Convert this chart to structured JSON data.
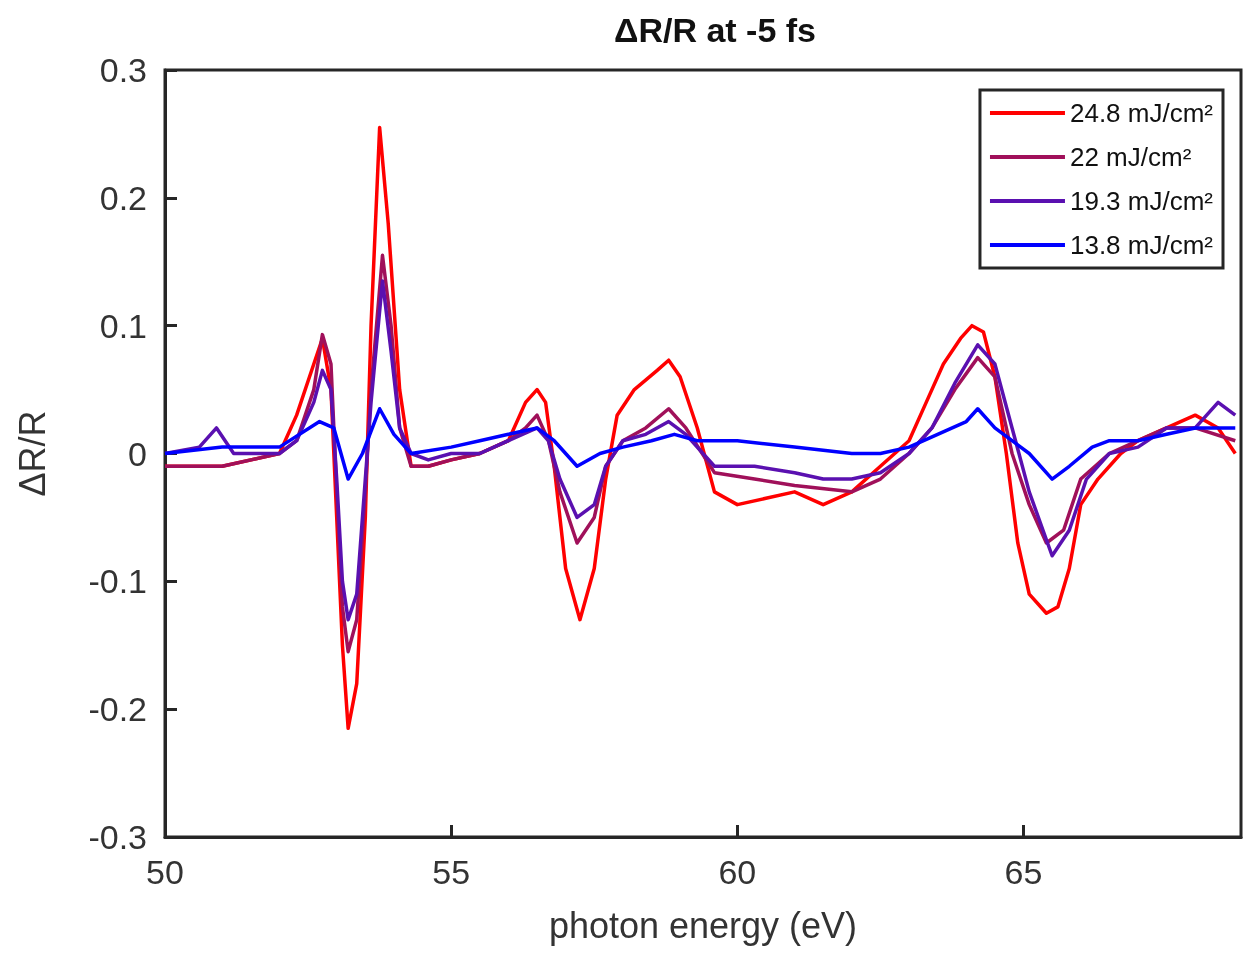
{
  "chart_data": {
    "type": "line",
    "title": "ΔR/R at -5 fs",
    "xlabel": "photon energy (eV)",
    "ylabel": "ΔR/R",
    "xlim": [
      50,
      68.8
    ],
    "xticks": [
      50,
      55,
      60,
      65
    ],
    "ylim": [
      -0.3,
      0.3
    ],
    "yticks": [
      -0.3,
      -0.2,
      -0.1,
      0,
      0.1,
      0.2,
      0.3
    ],
    "grid": false,
    "legend": "top right",
    "marker": "none",
    "line_style": "solid",
    "series": [
      {
        "name": "24.8 mJ/cm²",
        "color": "#ff0000",
        "x": [
          50,
          51,
          52,
          52.3,
          52.6,
          52.75,
          52.9,
          53.0,
          53.1,
          53.2,
          53.35,
          53.5,
          53.6,
          53.75,
          53.9,
          54.1,
          54.3,
          54.6,
          55,
          55.5,
          56.0,
          56.3,
          56.5,
          56.65,
          56.8,
          57.0,
          57.25,
          57.5,
          57.7,
          57.9,
          58.2,
          58.6,
          58.8,
          59.0,
          59.3,
          59.6,
          60.0,
          60.5,
          61.0,
          61.5,
          62.0,
          62.5,
          63.0,
          63.3,
          63.6,
          63.9,
          64.1,
          64.3,
          64.5,
          64.7,
          64.9,
          65.1,
          65.4,
          65.6,
          65.8,
          66.0,
          66.3,
          66.7,
          67.0,
          67.5,
          68.0,
          68.4,
          68.7
        ],
        "values": [
          -0.01,
          -0.01,
          0.0,
          0.03,
          0.07,
          0.09,
          0.05,
          -0.05,
          -0.15,
          -0.215,
          -0.18,
          -0.05,
          0.1,
          0.255,
          0.18,
          0.05,
          -0.01,
          -0.01,
          -0.005,
          0.0,
          0.01,
          0.04,
          0.05,
          0.04,
          -0.01,
          -0.09,
          -0.13,
          -0.09,
          -0.02,
          0.03,
          0.05,
          0.065,
          0.073,
          0.06,
          0.02,
          -0.03,
          -0.04,
          -0.035,
          -0.03,
          -0.04,
          -0.03,
          -0.01,
          0.01,
          0.04,
          0.07,
          0.09,
          0.1,
          0.095,
          0.06,
          0.0,
          -0.07,
          -0.11,
          -0.125,
          -0.12,
          -0.09,
          -0.04,
          -0.02,
          0.0,
          0.01,
          0.02,
          0.03,
          0.02,
          0.0
        ]
      },
      {
        "name": "22 mJ/cm²",
        "color": "#a0105a",
        "x": [
          50,
          51,
          52,
          52.3,
          52.6,
          52.75,
          52.9,
          53.0,
          53.1,
          53.2,
          53.35,
          53.5,
          53.6,
          53.8,
          53.95,
          54.1,
          54.3,
          54.6,
          55,
          55.5,
          56.0,
          56.3,
          56.5,
          56.7,
          56.9,
          57.2,
          57.5,
          57.7,
          58.0,
          58.4,
          58.8,
          59.1,
          59.6,
          60.3,
          61.0,
          62.0,
          62.5,
          63.0,
          63.4,
          63.8,
          64.2,
          64.5,
          64.8,
          65.1,
          65.4,
          65.7,
          66.0,
          66.5,
          67.0,
          67.5,
          68.0,
          68.7
        ],
        "values": [
          -0.01,
          -0.01,
          0.0,
          0.01,
          0.05,
          0.093,
          0.07,
          -0.03,
          -0.12,
          -0.155,
          -0.13,
          -0.03,
          0.05,
          0.155,
          0.1,
          0.02,
          -0.01,
          -0.01,
          -0.005,
          0.0,
          0.01,
          0.02,
          0.03,
          0.01,
          -0.03,
          -0.07,
          -0.05,
          -0.01,
          0.01,
          0.02,
          0.035,
          0.02,
          -0.015,
          -0.02,
          -0.025,
          -0.03,
          -0.02,
          0.0,
          0.02,
          0.05,
          0.075,
          0.06,
          0.0,
          -0.04,
          -0.07,
          -0.06,
          -0.02,
          0.0,
          0.01,
          0.02,
          0.02,
          0.01
        ]
      },
      {
        "name": "19.3 mJ/cm²",
        "color": "#5a10b0",
        "x": [
          50,
          50.6,
          50.9,
          51.2,
          52,
          52.3,
          52.6,
          52.75,
          52.9,
          53.0,
          53.1,
          53.2,
          53.35,
          53.5,
          53.6,
          53.8,
          53.95,
          54.1,
          54.3,
          54.6,
          55,
          55.5,
          56.0,
          56.5,
          56.7,
          56.9,
          57.2,
          57.5,
          57.7,
          58.0,
          58.4,
          58.8,
          59.1,
          59.6,
          60.3,
          61.0,
          61.5,
          62.0,
          62.5,
          63.0,
          63.4,
          63.8,
          64.2,
          64.5,
          64.8,
          65.1,
          65.5,
          65.8,
          66.1,
          66.5,
          67.0,
          67.5,
          68.0,
          68.4,
          68.7
        ],
        "values": [
          0.0,
          0.005,
          0.02,
          0.0,
          0.0,
          0.01,
          0.04,
          0.065,
          0.05,
          -0.02,
          -0.1,
          -0.13,
          -0.11,
          -0.02,
          0.04,
          0.135,
          0.08,
          0.02,
          0.0,
          -0.005,
          0.0,
          0.0,
          0.01,
          0.02,
          0.01,
          -0.02,
          -0.05,
          -0.04,
          -0.01,
          0.01,
          0.015,
          0.025,
          0.015,
          -0.01,
          -0.01,
          -0.015,
          -0.02,
          -0.02,
          -0.015,
          0.0,
          0.02,
          0.055,
          0.085,
          0.07,
          0.02,
          -0.03,
          -0.08,
          -0.06,
          -0.02,
          0.0,
          0.005,
          0.02,
          0.02,
          0.04,
          0.03
        ]
      },
      {
        "name": "13.8 mJ/cm²",
        "color": "#0000ff",
        "x": [
          50,
          51,
          52,
          52.7,
          52.95,
          53.2,
          53.45,
          53.75,
          54.0,
          54.3,
          55,
          55.5,
          56.0,
          56.5,
          56.8,
          57.2,
          57.6,
          58.0,
          58.5,
          58.9,
          59.3,
          60.0,
          61.0,
          62.0,
          62.5,
          63.0,
          63.5,
          64.0,
          64.2,
          64.5,
          64.8,
          65.1,
          65.5,
          65.8,
          66.2,
          66.5,
          67.0,
          67.5,
          68.0,
          68.7
        ],
        "values": [
          0.0,
          0.005,
          0.005,
          0.025,
          0.02,
          -0.02,
          0.0,
          0.035,
          0.015,
          0.0,
          0.005,
          0.01,
          0.015,
          0.02,
          0.01,
          -0.01,
          0.0,
          0.005,
          0.01,
          0.015,
          0.01,
          0.01,
          0.005,
          0.0,
          0.0,
          0.005,
          0.015,
          0.025,
          0.035,
          0.02,
          0.01,
          0.0,
          -0.02,
          -0.01,
          0.005,
          0.01,
          0.01,
          0.015,
          0.02,
          0.02
        ]
      }
    ]
  }
}
